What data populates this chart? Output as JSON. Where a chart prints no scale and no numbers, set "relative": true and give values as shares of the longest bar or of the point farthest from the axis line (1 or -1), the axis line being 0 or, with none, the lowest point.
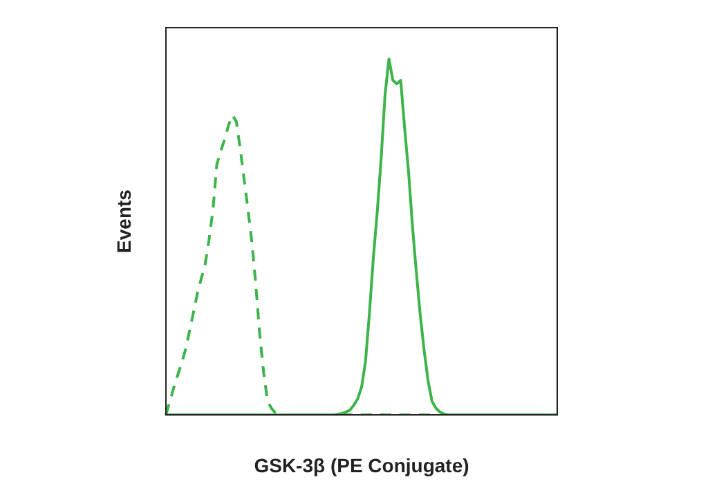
{
  "chart_data": {
    "type": "line",
    "relative": true,
    "xlabel": "GSK-3β (PE Conjugate)",
    "ylabel": "Events",
    "categories": [
      null,
      null,
      null,
      null,
      null,
      null,
      null,
      null,
      null,
      null,
      null,
      null,
      null,
      null,
      null,
      null,
      null,
      null,
      null,
      null,
      null,
      null,
      null,
      null,
      null,
      null,
      null,
      null,
      null,
      null,
      null,
      null,
      null,
      null,
      null,
      null,
      null,
      null,
      null,
      null,
      null,
      null,
      null,
      null,
      null,
      null,
      null,
      null,
      null,
      null,
      null,
      null,
      null,
      null,
      null,
      null,
      null,
      null,
      null,
      null,
      null,
      null,
      null,
      null,
      null,
      null,
      null,
      null,
      null,
      null,
      null,
      null,
      null,
      null,
      null,
      null,
      null,
      null,
      null,
      null,
      null,
      null,
      null,
      null,
      null,
      null,
      null,
      null,
      null,
      null,
      null,
      null,
      null,
      null,
      null,
      null,
      null,
      null,
      null,
      null,
      null
    ],
    "grid": false,
    "legend": false,
    "marker": "none",
    "series": [
      {
        "color": "#3cb44a",
        "line_style": "dashed",
        "values": [
          0,
          0.038,
          0.076,
          0.111,
          0.145,
          0.183,
          0.234,
          0.286,
          0.339,
          0.382,
          0.421,
          0.491,
          0.574,
          0.703,
          0.741,
          0.774,
          0.814,
          0.842,
          0.824,
          0.747,
          0.66,
          0.574,
          0.482,
          0.362,
          0.223,
          0.116,
          0.037,
          0.018,
          0.005,
          0,
          0,
          0,
          0,
          0,
          0,
          0,
          0,
          0,
          0,
          0,
          0,
          0,
          0,
          0,
          0,
          0,
          0,
          0,
          0,
          0,
          0,
          0,
          0,
          0,
          0,
          0,
          0,
          0,
          0,
          0,
          0,
          0,
          0,
          0,
          0,
          0,
          0,
          0,
          0,
          0,
          null,
          null,
          null,
          null,
          null,
          null,
          null,
          null,
          null,
          null,
          null,
          null,
          null,
          null,
          null,
          null,
          null,
          null,
          null,
          null,
          null,
          null,
          null,
          null,
          null,
          null,
          null,
          null,
          null,
          null,
          null
        ]
      },
      {
        "color": "#3cb44a",
        "line_style": "solid",
        "values": [
          0,
          0,
          0,
          0,
          0,
          0,
          0,
          0,
          0,
          0,
          0,
          0,
          0,
          0,
          0,
          0,
          0,
          0,
          0,
          0,
          0,
          0,
          0,
          0,
          0,
          0,
          0,
          0,
          0,
          0,
          0,
          0,
          0,
          0,
          0,
          0,
          0,
          0,
          0,
          0,
          0,
          0,
          0,
          0,
          0.002,
          0.004,
          0.008,
          0.013,
          0.027,
          0.045,
          0.078,
          0.149,
          0.285,
          0.44,
          0.57,
          0.72,
          0.9,
          1,
          0.94,
          0.93,
          0.94,
          0.805,
          0.684,
          0.531,
          0.4,
          0.28,
          0.18,
          0.095,
          0.038,
          0.019,
          0.008,
          0.003,
          0,
          0,
          0,
          0,
          0,
          0,
          0,
          0,
          0,
          0,
          0,
          0,
          0,
          0,
          0,
          0,
          0,
          0,
          0,
          0,
          0,
          0,
          0,
          0,
          0,
          0,
          0,
          0,
          0
        ]
      }
    ]
  }
}
